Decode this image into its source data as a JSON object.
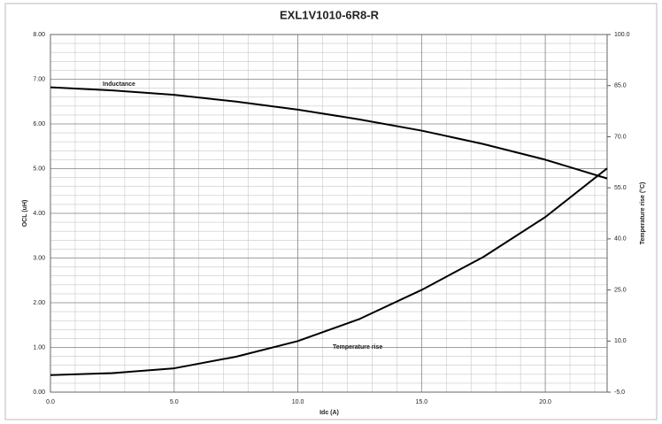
{
  "chart_data": {
    "type": "line",
    "title": "EXL1V1010-6R8-R",
    "xlabel": "Idc (A)",
    "ylabel": "OCL (uH)",
    "y2label": "Temperature rise (°C)",
    "annotations": [
      "Inductance",
      "Temperature rise"
    ],
    "x": [
      0,
      2.5,
      5,
      7.5,
      10,
      12.5,
      15,
      17.5,
      20,
      22.5
    ],
    "series": [
      {
        "name": "Inductance",
        "color": "#000000",
        "values": [
          6.82,
          6.75,
          6.65,
          6.5,
          6.32,
          6.1,
          5.85,
          5.55,
          5.2,
          4.78
        ]
      },
      {
        "name": "Temperature rise",
        "color": "#000000",
        "axis": "y2",
        "values": [
          0,
          0.6,
          2,
          5.4,
          10,
          16.5,
          25,
          34.7,
          46.4,
          60.7
        ]
      }
    ],
    "xlim": [
      0,
      22.5
    ],
    "xticks": [
      {
        "value": 0,
        "label": "0.0"
      },
      {
        "value": 5,
        "label": "5.0"
      },
      {
        "value": 10,
        "label": "10.0"
      },
      {
        "value": 15,
        "label": "15.0"
      },
      {
        "value": 20,
        "label": "20.0"
      }
    ],
    "ylim": [
      0,
      8
    ],
    "yticks": [
      {
        "value": 0,
        "label": "0.00"
      },
      {
        "value": 1,
        "label": "1.00"
      },
      {
        "value": 2,
        "label": "2.00"
      },
      {
        "value": 3,
        "label": "3.00"
      },
      {
        "value": 4,
        "label": "4.00"
      },
      {
        "value": 5,
        "label": "5.00"
      },
      {
        "value": 6,
        "label": "6.00"
      },
      {
        "value": 7,
        "label": "7.00"
      },
      {
        "value": 8,
        "label": "8.00"
      }
    ],
    "y2lim": [
      -5,
      100
    ],
    "y2ticks": [
      {
        "value": -5,
        "label": "-5.0"
      },
      {
        "value": 10,
        "label": "10.0"
      },
      {
        "value": 25,
        "label": "25.0"
      },
      {
        "value": 40,
        "label": "40.0"
      },
      {
        "value": 55,
        "label": "55.0"
      },
      {
        "value": 70,
        "label": "70.0"
      },
      {
        "value": 85,
        "label": "85.0"
      },
      {
        "value": 100,
        "label": "100.0"
      }
    ],
    "grid": true
  }
}
